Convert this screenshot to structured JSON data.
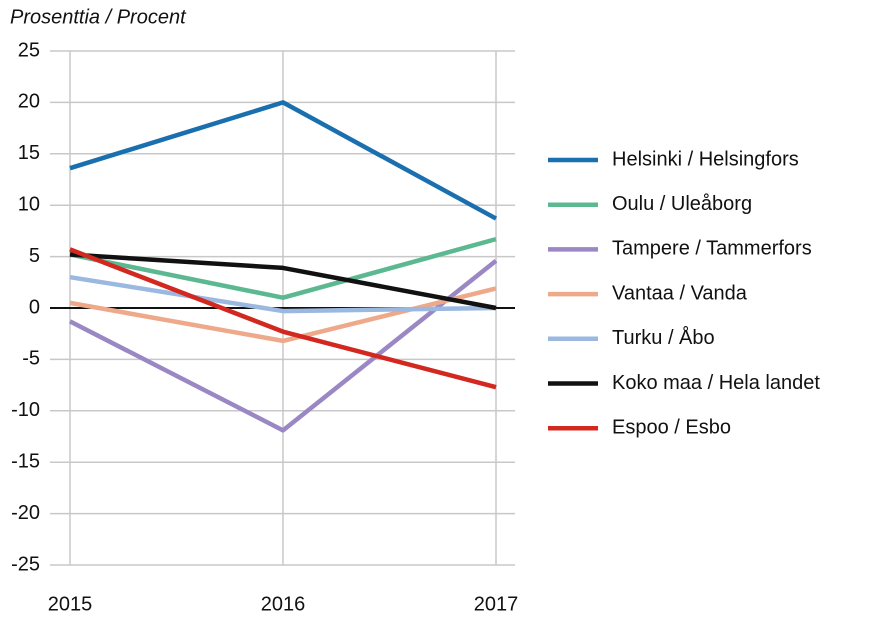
{
  "chart_data": {
    "type": "line",
    "y_axis_label": "Prosenttia / Procent",
    "categories": [
      "2015",
      "2016",
      "2017"
    ],
    "ylim": [
      -25,
      25
    ],
    "yticks": [
      -25,
      -20,
      -15,
      -10,
      -5,
      0,
      5,
      10,
      15,
      20,
      25
    ],
    "grid": true,
    "legend": "right",
    "series": [
      {
        "name": "Helsinki / Helsingfors",
        "color": "#1a6faf",
        "values": [
          13.6,
          20.0,
          8.7
        ]
      },
      {
        "name": "Oulu / Uleåborg",
        "color": "#5cb891",
        "values": [
          5.2,
          1.0,
          6.7
        ]
      },
      {
        "name": "Tampere / Tammerfors",
        "color": "#9a87c4",
        "values": [
          -1.3,
          -11.9,
          4.6
        ]
      },
      {
        "name": "Vantaa / Vanda",
        "color": "#eda98a",
        "values": [
          0.5,
          -3.2,
          1.9
        ]
      },
      {
        "name": "Turku / Åbo",
        "color": "#9ab8e0",
        "values": [
          3.0,
          -0.3,
          0
        ]
      },
      {
        "name": "Koko maa / Hela landet",
        "color": "#111111",
        "values": [
          5.2,
          3.9,
          0
        ]
      },
      {
        "name": "Espoo / Esbo",
        "color": "#d2281f",
        "values": [
          5.7,
          -2.3,
          -7.7
        ]
      }
    ]
  }
}
